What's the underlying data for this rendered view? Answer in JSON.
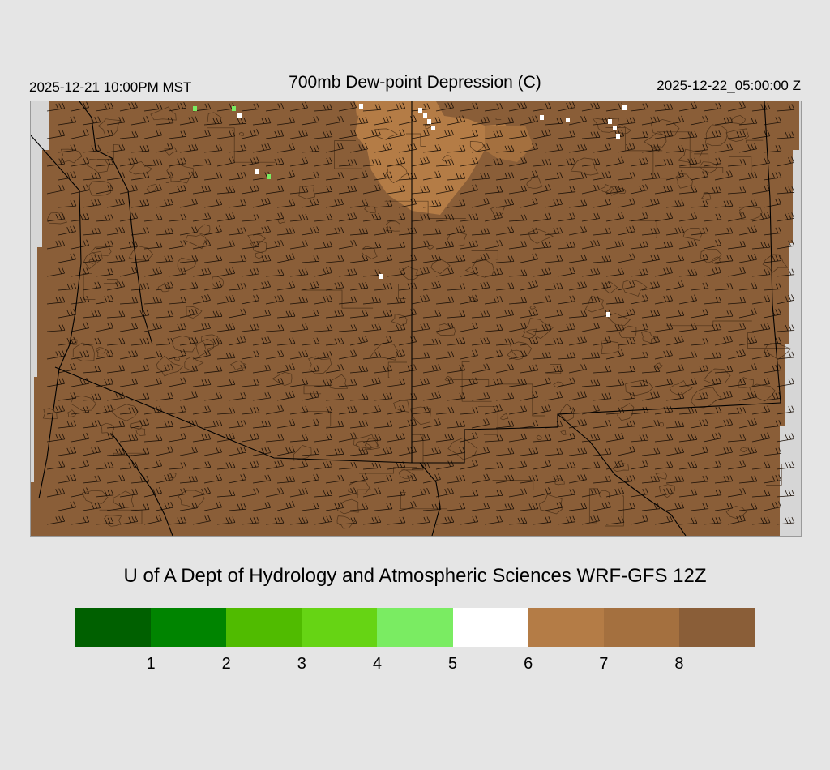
{
  "header": {
    "local_time": "2025-12-21 10:00PM MST",
    "title": "700mb Dew-point Depression (C)",
    "valid_time": "2025-12-22_05:00:00 Z"
  },
  "credit": "U of A Dept of Hydrology and Atmospheric Sciences WRF-GFS 12Z",
  "legend": {
    "colors": [
      "#006000",
      "#008400",
      "#50bb00",
      "#66d414",
      "#7aec62",
      "#ffffff",
      "#b47c46",
      "#a4703f",
      "#8a5e38"
    ],
    "ticks": [
      "1",
      "2",
      "3",
      "4",
      "5",
      "6",
      "7",
      "8"
    ]
  },
  "map": {
    "field_color": "#8a5e38",
    "lighter_region_color": "#b47c46",
    "background_color": "#d6d6d6"
  }
}
